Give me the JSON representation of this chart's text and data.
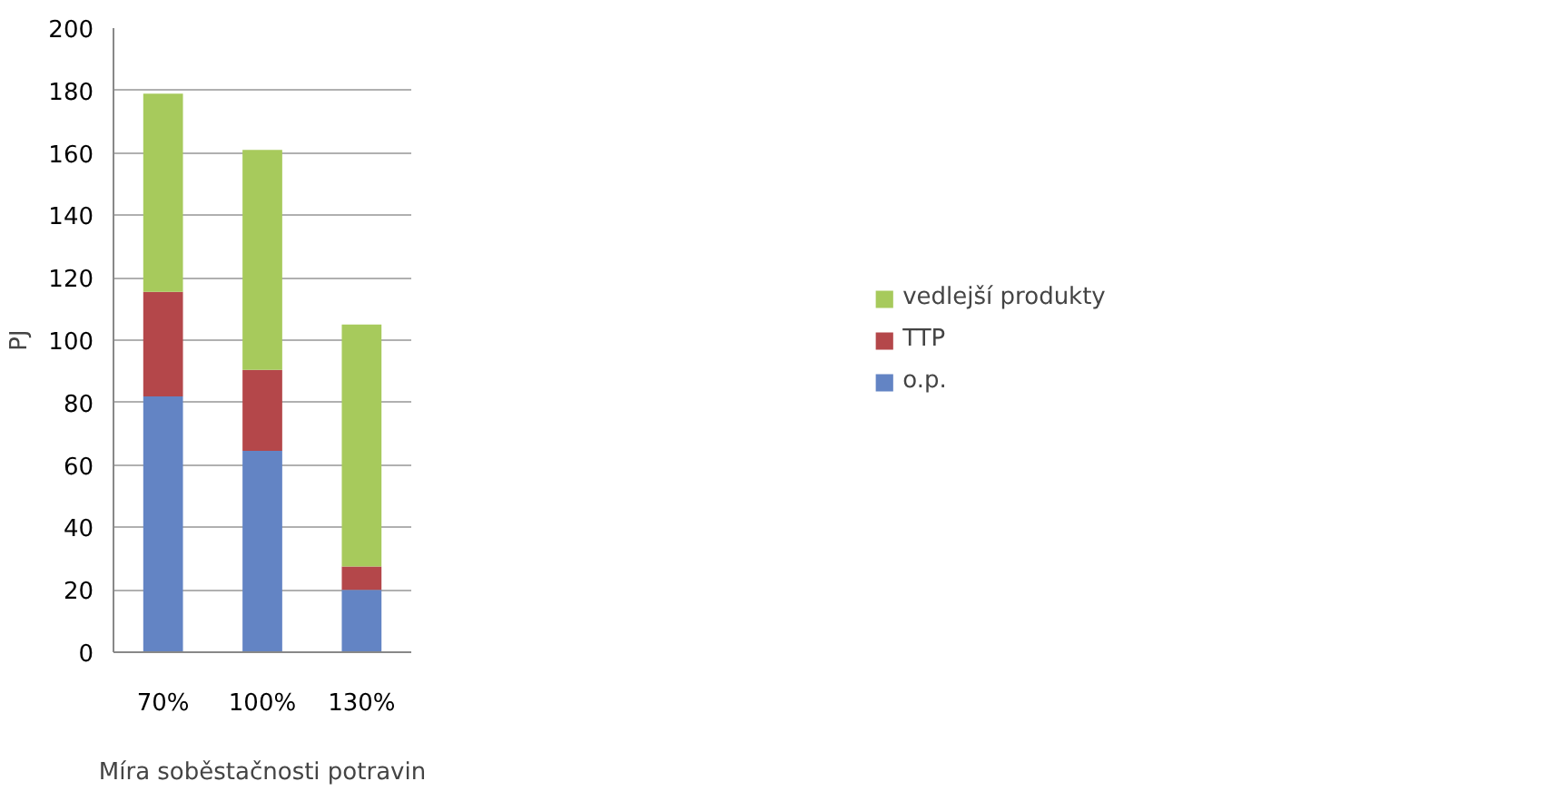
{
  "chart_data": {
    "type": "bar",
    "stacked": true,
    "xlabel": "Míra soběstačnosti potravin",
    "ylabel": "PJ",
    "categories": [
      "70%",
      "100%",
      "130%"
    ],
    "series": [
      {
        "name": "o.p.",
        "color": "#6384c4",
        "values": [
          82,
          64.5,
          20
        ]
      },
      {
        "name": "TTP",
        "color": "#b4474a",
        "values": [
          33.5,
          26,
          7.5
        ]
      },
      {
        "name": "vedlejší produkty",
        "color": "#a7ca5c",
        "values": [
          63.5,
          70.5,
          77.5
        ]
      }
    ],
    "ylim": [
      0,
      200
    ],
    "yticks": [
      0,
      20,
      40,
      60,
      80,
      100,
      120,
      140,
      160,
      180,
      200
    ],
    "grid": "y",
    "legend": "right"
  }
}
